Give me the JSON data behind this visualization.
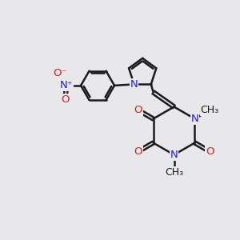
{
  "bg_color": "#e8e8ea",
  "line_color": "#1a1a1a",
  "n_color": "#2222cc",
  "o_color": "#cc2222",
  "bond_lw": 1.8,
  "font_size": 9.5,
  "fig_size": [
    3.0,
    3.0
  ],
  "dpi": 100,
  "xlim": [
    0,
    10
  ],
  "ylim": [
    0,
    10
  ]
}
